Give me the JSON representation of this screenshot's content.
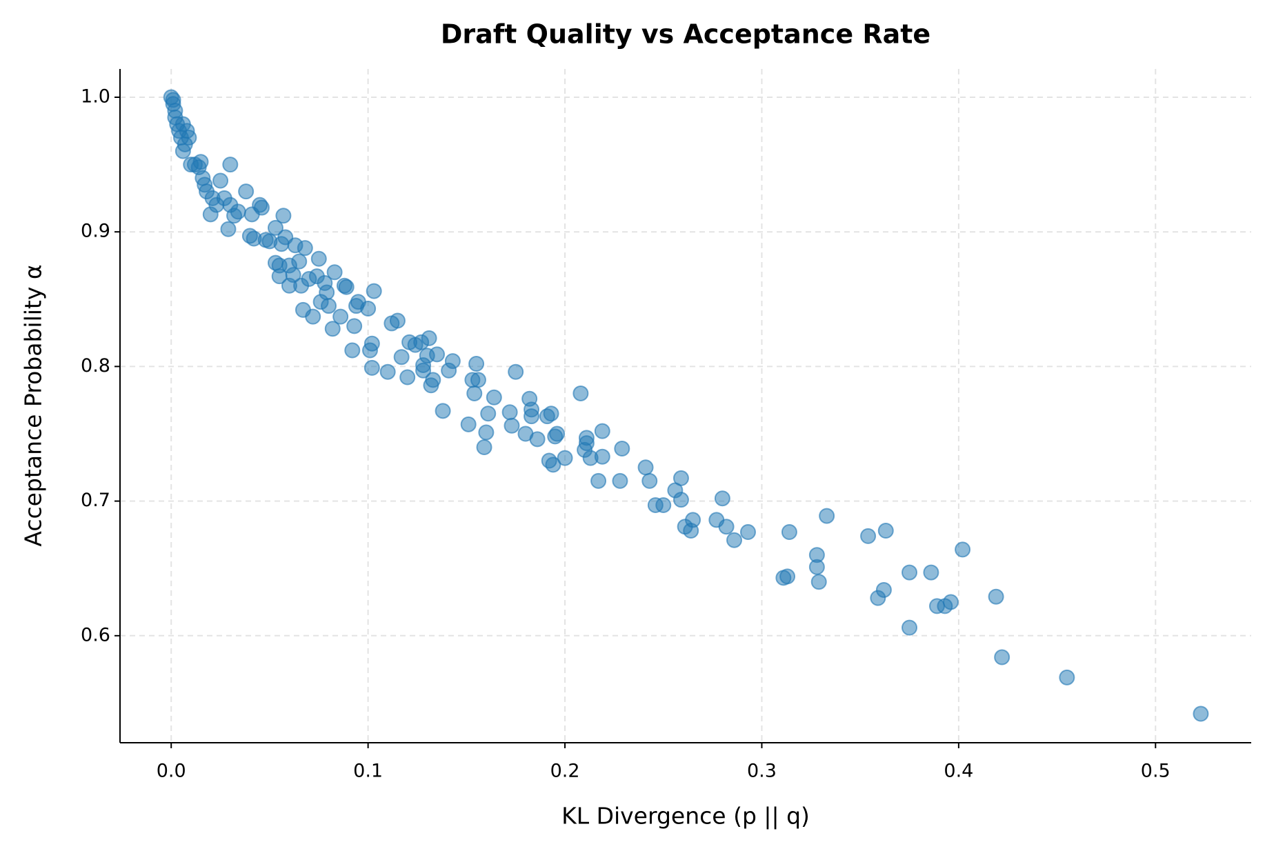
{
  "chart_data": {
    "type": "scatter",
    "title": "Draft Quality vs Acceptance Rate",
    "x_label": "KL Divergence (p || q)",
    "y_label": "Acceptance Probability α",
    "color": "#1f77b4",
    "grid": true,
    "xlim": [
      -0.026,
      0.5486
    ],
    "ylim": [
      0.5205,
      1.021
    ],
    "xticks": [
      {
        "value": 0,
        "label": "0.0"
      },
      0.1,
      0.2,
      0.3,
      0.4,
      0.5
    ],
    "yticks": [
      0.6,
      0.7,
      0.8,
      0.9,
      {
        "value": 1,
        "label": "1.0"
      }
    ],
    "x": [
      0,
      0.001,
      0.001,
      0.002,
      0.002,
      0.003,
      0.004,
      0.005,
      0.006,
      0.006,
      0.007,
      0.008,
      0.009,
      0.01,
      0.012,
      0.014,
      0.015,
      0.016,
      0.017,
      0.018,
      0.02,
      0.021,
      0.023,
      0.025,
      0.027,
      0.03,
      0.03,
      0.029,
      0.032,
      0.034,
      0.038,
      0.04,
      0.041,
      0.042,
      0.045,
      0.046,
      0.048,
      0.05,
      0.053,
      0.053,
      0.055,
      0.055,
      0.056,
      0.057,
      0.058,
      0.06,
      0.06,
      0.062,
      0.063,
      0.065,
      0.066,
      0.067,
      0.068,
      0.07,
      0.072,
      0.074,
      0.075,
      0.076,
      0.078,
      0.079,
      0.08,
      0.082,
      0.083,
      0.086,
      0.088,
      0.089,
      0.092,
      0.093,
      0.094,
      0.095,
      0.1,
      0.101,
      0.102,
      0.102,
      0.103,
      0.11,
      0.112,
      0.115,
      0.117,
      0.12,
      0.121,
      0.124,
      0.127,
      0.128,
      0.128,
      0.13,
      0.131,
      0.132,
      0.133,
      0.135,
      0.138,
      0.141,
      0.143,
      0.151,
      0.153,
      0.154,
      0.155,
      0.156,
      0.159,
      0.16,
      0.161,
      0.164,
      0.172,
      0.173,
      0.175,
      0.18,
      0.182,
      0.183,
      0.183,
      0.186,
      0.191,
      0.192,
      0.193,
      0.194,
      0.195,
      0.196,
      0.2,
      0.208,
      0.21,
      0.211,
      0.211,
      0.213,
      0.217,
      0.219,
      0.219,
      0.228,
      0.229,
      0.241,
      0.243,
      0.246,
      0.25,
      0.256,
      0.259,
      0.259,
      0.261,
      0.264,
      0.265,
      0.277,
      0.28,
      0.282,
      0.286,
      0.293,
      0.311,
      0.313,
      0.314,
      0.328,
      0.328,
      0.329,
      0.333,
      0.354,
      0.359,
      0.362,
      0.363,
      0.375,
      0.375,
      0.386,
      0.389,
      0.393,
      0.396,
      0.402,
      0.419,
      0.422,
      0.455,
      0.523
    ],
    "values": [
      1.0,
      0.998,
      0.995,
      0.99,
      0.985,
      0.98,
      0.975,
      0.97,
      0.98,
      0.96,
      0.965,
      0.975,
      0.97,
      0.95,
      0.95,
      0.948,
      0.952,
      0.94,
      0.935,
      0.93,
      0.913,
      0.925,
      0.92,
      0.938,
      0.925,
      0.95,
      0.92,
      0.902,
      0.912,
      0.915,
      0.93,
      0.897,
      0.913,
      0.895,
      0.92,
      0.918,
      0.894,
      0.893,
      0.903,
      0.877,
      0.875,
      0.867,
      0.891,
      0.912,
      0.896,
      0.86,
      0.875,
      0.868,
      0.89,
      0.878,
      0.86,
      0.842,
      0.888,
      0.865,
      0.837,
      0.867,
      0.88,
      0.848,
      0.862,
      0.855,
      0.845,
      0.828,
      0.87,
      0.837,
      0.86,
      0.859,
      0.812,
      0.83,
      0.845,
      0.848,
      0.843,
      0.812,
      0.817,
      0.799,
      0.856,
      0.796,
      0.832,
      0.834,
      0.807,
      0.792,
      0.818,
      0.816,
      0.818,
      0.801,
      0.797,
      0.808,
      0.821,
      0.786,
      0.79,
      0.809,
      0.767,
      0.797,
      0.804,
      0.757,
      0.79,
      0.78,
      0.802,
      0.79,
      0.74,
      0.751,
      0.765,
      0.777,
      0.766,
      0.756,
      0.796,
      0.75,
      0.776,
      0.768,
      0.763,
      0.746,
      0.763,
      0.73,
      0.765,
      0.727,
      0.748,
      0.75,
      0.732,
      0.78,
      0.738,
      0.747,
      0.743,
      0.732,
      0.715,
      0.752,
      0.733,
      0.715,
      0.739,
      0.725,
      0.715,
      0.697,
      0.697,
      0.708,
      0.717,
      0.701,
      0.681,
      0.678,
      0.686,
      0.686,
      0.702,
      0.681,
      0.671,
      0.677,
      0.643,
      0.644,
      0.677,
      0.66,
      0.651,
      0.64,
      0.689,
      0.674,
      0.628,
      0.634,
      0.678,
      0.647,
      0.606,
      0.647,
      0.622,
      0.622,
      0.625,
      0.664,
      0.629,
      0.584,
      0.569,
      0.542
    ]
  }
}
